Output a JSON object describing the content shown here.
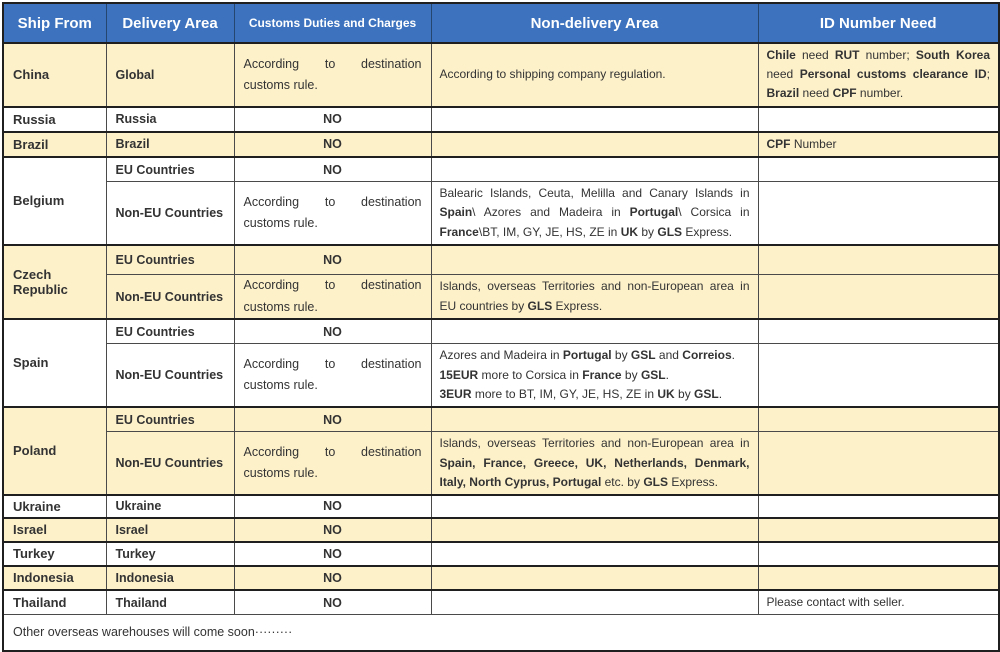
{
  "header": {
    "columns": [
      "Ship From",
      "Delivery Area",
      "Customs Duties and Charges",
      "Non-delivery Area",
      "ID Number Need"
    ]
  },
  "labels": {
    "no": "NO"
  },
  "customs_note": {
    "line1_words": [
      "According",
      "to",
      "destination"
    ],
    "line2": "customs rule."
  },
  "colors": {
    "header_bg": "#3D73BE",
    "header_text": "#FFFFFF",
    "row_cream": "#FDF1CA",
    "row_white": "#FFFFFF",
    "border_dark": "#1F1F1F",
    "text": "#333333"
  },
  "footer": {
    "text": "Other overseas warehouses will come soon·········"
  },
  "groups": [
    {
      "ship_from": "China",
      "shade": "cream",
      "rows": [
        {
          "h": 62,
          "delivery": "Global",
          "customs": "according",
          "nondelivery": {
            "style": "plain",
            "lines": [
              [
                {
                  "t": "According to shipping company regulation."
                }
              ]
            ]
          },
          "id": {
            "style": "para",
            "lines": [
              [
                {
                  "t": "Chile",
                  "b": 1
                },
                {
                  "t": " need "
                },
                {
                  "t": "RUT",
                  "b": 1
                },
                {
                  "t": " number; "
                },
                {
                  "t": "South Korea",
                  "b": 1
                },
                {
                  "t": " need "
                },
                {
                  "t": "Personal customs clearance ID",
                  "b": 1
                },
                {
                  "t": "; "
                },
                {
                  "t": "Brazil",
                  "b": 1
                },
                {
                  "t": " need "
                },
                {
                  "t": "CPF",
                  "b": 1
                },
                {
                  "t": " number."
                }
              ]
            ]
          }
        }
      ]
    },
    {
      "ship_from": "Russia",
      "shade": "white",
      "rows": [
        {
          "h": 25,
          "delivery": "Russia",
          "customs": "no",
          "nondelivery": null,
          "id": null
        }
      ]
    },
    {
      "ship_from": "Brazil",
      "shade": "cream",
      "rows": [
        {
          "h": 23,
          "delivery": "Brazil",
          "customs": "no",
          "nondelivery": null,
          "id": {
            "style": "plain",
            "lines": [
              [
                {
                  "t": "CPF",
                  "b": 1
                },
                {
                  "t": " Number"
                }
              ]
            ]
          }
        }
      ]
    },
    {
      "ship_from": "Belgium",
      "shade": "white",
      "rows": [
        {
          "h": 25,
          "delivery": "EU Countries",
          "customs": "no",
          "nondelivery": null,
          "id": null
        },
        {
          "h": 58,
          "delivery": "Non-EU Countries",
          "customs": "according",
          "nondelivery": {
            "style": "para",
            "lines": [
              [
                {
                  "t": "Balearic Islands, Ceuta, Melilla and Canary Islands in "
                },
                {
                  "t": "Spain",
                  "b": 1
                },
                {
                  "t": "\\ Azores and Madeira in "
                },
                {
                  "t": "Portugal",
                  "b": 1
                },
                {
                  "t": "\\ Corsica in "
                },
                {
                  "t": "France",
                  "b": 1
                },
                {
                  "t": "\\BT, IM, GY, JE, HS, ZE in "
                },
                {
                  "t": "UK",
                  "b": 1
                },
                {
                  "t": " by "
                },
                {
                  "t": "GLS",
                  "b": 1
                },
                {
                  "t": " Express."
                }
              ]
            ]
          },
          "id": null
        }
      ]
    },
    {
      "ship_from": "Czech Republic",
      "shade": "cream",
      "rows": [
        {
          "h": 30,
          "delivery": "EU Countries",
          "customs": "no",
          "nondelivery": null,
          "id": null
        },
        {
          "h": 43,
          "delivery": "Non-EU Countries",
          "customs": "according",
          "nondelivery": {
            "style": "para",
            "lines": [
              [
                {
                  "t": "Islands, overseas Territories and non-European area in EU countries by "
                },
                {
                  "t": "GLS",
                  "b": 1
                },
                {
                  "t": " Express."
                }
              ]
            ]
          },
          "id": null
        }
      ]
    },
    {
      "ship_from": "Spain",
      "shade": "white",
      "rows": [
        {
          "h": 25,
          "delivery": "EU Countries",
          "customs": "no",
          "nondelivery": null,
          "id": null
        },
        {
          "h": 62,
          "delivery": "Non-EU Countries",
          "customs": "according",
          "nondelivery": {
            "style": "lines",
            "lines": [
              [
                {
                  "t": "Azores and Madeira in "
                },
                {
                  "t": "Portugal",
                  "b": 1
                },
                {
                  "t": " by "
                },
                {
                  "t": "GSL",
                  "b": 1
                },
                {
                  "t": " and "
                },
                {
                  "t": "Correios",
                  "b": 1
                },
                {
                  "t": "."
                }
              ],
              [
                {
                  "t": "15EUR",
                  "b": 1
                },
                {
                  "t": " more to Corsica in "
                },
                {
                  "t": "France",
                  "b": 1
                },
                {
                  "t": " by "
                },
                {
                  "t": "GSL",
                  "b": 1
                },
                {
                  "t": "."
                }
              ],
              [
                {
                  "t": "3EUR",
                  "b": 1
                },
                {
                  "t": " more to BT, IM, GY, JE, HS, ZE in "
                },
                {
                  "t": "UK",
                  "b": 1
                },
                {
                  "t": " by "
                },
                {
                  "t": "GSL",
                  "b": 1
                },
                {
                  "t": "."
                }
              ]
            ]
          },
          "id": null
        }
      ]
    },
    {
      "ship_from": "Poland",
      "shade": "cream",
      "rows": [
        {
          "h": 25,
          "delivery": "EU Countries",
          "customs": "no",
          "nondelivery": null,
          "id": null
        },
        {
          "h": 60,
          "delivery": "Non-EU Countries",
          "customs": "according",
          "nondelivery": {
            "style": "para",
            "lines": [
              [
                {
                  "t": "Islands, overseas Territories and non-European area in "
                },
                {
                  "t": "Spain, France, Greece, UK, Netherlands, Denmark, Italy, North Cyprus, Portugal",
                  "b": 1
                },
                {
                  "t": " etc. by "
                },
                {
                  "t": "GLS",
                  "b": 1
                },
                {
                  "t": " Express."
                }
              ]
            ]
          },
          "id": null
        }
      ]
    },
    {
      "ship_from": "Ukraine",
      "shade": "white",
      "rows": [
        {
          "h": 23,
          "delivery": "Ukraine",
          "customs": "no",
          "nondelivery": null,
          "id": null
        }
      ]
    },
    {
      "ship_from": "Israel",
      "shade": "cream",
      "rows": [
        {
          "h": 24,
          "delivery": "Israel",
          "customs": "no",
          "nondelivery": null,
          "id": null
        }
      ]
    },
    {
      "ship_from": "Turkey",
      "shade": "white",
      "rows": [
        {
          "h": 24,
          "delivery": "Turkey",
          "customs": "no",
          "nondelivery": null,
          "id": null
        }
      ]
    },
    {
      "ship_from": "Indonesia",
      "shade": "cream",
      "rows": [
        {
          "h": 24,
          "delivery": "Indonesia",
          "customs": "no",
          "nondelivery": null,
          "id": null
        }
      ]
    },
    {
      "ship_from": "Thailand",
      "shade": "white",
      "rows": [
        {
          "h": 24,
          "delivery": "Thailand",
          "customs": "no",
          "nondelivery": null,
          "id": {
            "style": "plain",
            "lines": [
              [
                {
                  "t": "Please contact with seller."
                }
              ]
            ]
          }
        }
      ]
    }
  ]
}
